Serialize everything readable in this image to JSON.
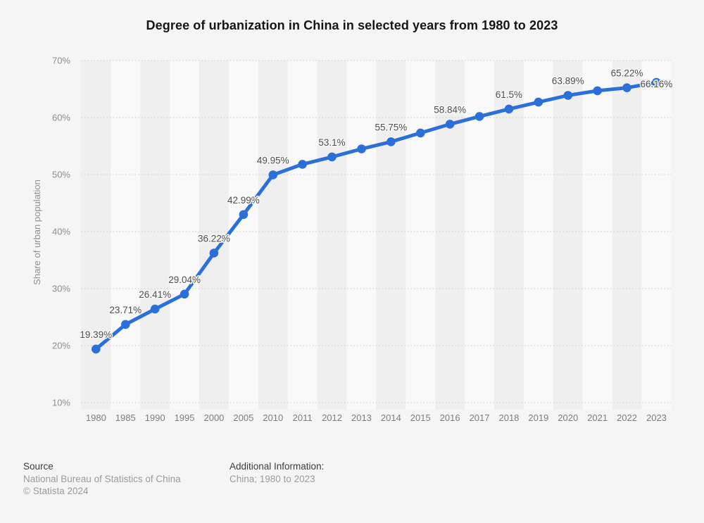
{
  "header": {
    "title": "Degree of urbanization in China in selected years from 1980 to 2023"
  },
  "chart_data": {
    "type": "line",
    "title": "Degree of urbanization in China in selected years from 1980 to 2023",
    "xlabel": "",
    "ylabel": "Share of urban population",
    "categories": [
      "1980",
      "1985",
      "1990",
      "1995",
      "2000",
      "2005",
      "2010",
      "2011",
      "2012",
      "2013",
      "2014",
      "2015",
      "2016",
      "2017",
      "2018",
      "2019",
      "2020",
      "2021",
      "2022",
      "2023"
    ],
    "values": [
      19.39,
      23.71,
      26.41,
      29.04,
      36.22,
      42.99,
      49.95,
      51.8,
      53.1,
      54.5,
      55.75,
      57.3,
      58.84,
      60.2,
      61.5,
      62.7,
      63.89,
      64.7,
      65.22,
      66.16
    ],
    "point_labels": [
      "19.39%",
      "23.71%",
      "26.41%",
      "29.04%",
      "36.22%",
      "42.99%",
      "49.95%",
      "",
      "53.1%",
      "",
      "55.75%",
      "",
      "58.84%",
      "",
      "61.5%",
      "",
      "63.89%",
      "",
      "65.22%",
      "66.16%"
    ],
    "ylim": [
      10,
      70
    ],
    "ytick_step": 10,
    "ytick_suffix": "%",
    "yticks": [
      "10%",
      "20%",
      "30%",
      "40%",
      "50%",
      "60%",
      "70%"
    ],
    "grid": "horizontal-dotted",
    "legend_position": "none",
    "line_color": "#2b70d9",
    "grid_color": "#c9c9c9",
    "stripe_color_dark": "#efeff0",
    "stripe_color_light": "#f9f9fa",
    "axis_text_color": "#8e8e8e",
    "xtick_text_color": "#7d7d7d",
    "data_label_color": "#4f4f4f"
  },
  "footer": {
    "source_heading": "Source",
    "source_name": "National Bureau of Statistics of China",
    "copyright": "© Statista 2024",
    "additional_heading": "Additional Information:",
    "additional_text": "China; 1980 to 2023"
  }
}
